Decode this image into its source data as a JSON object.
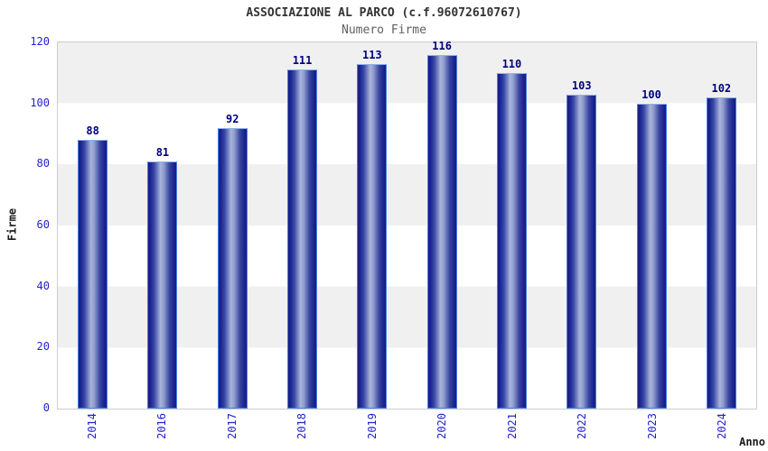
{
  "header": {
    "title": "ASSOCIAZIONE AL PARCO (c.f.96072610767)",
    "subtitle": "Numero Firme"
  },
  "chart_data": {
    "type": "bar",
    "title": "ASSOCIAZIONE AL PARCO (c.f.96072610767)",
    "subtitle": "Numero Firme",
    "categories": [
      "2014",
      "2016",
      "2017",
      "2018",
      "2019",
      "2020",
      "2021",
      "2022",
      "2023",
      "2024"
    ],
    "values": [
      88,
      81,
      92,
      111,
      113,
      116,
      110,
      103,
      100,
      102
    ],
    "xlabel": "Anno",
    "ylabel": "Firme",
    "ylim": [
      0,
      120
    ],
    "yticks": [
      0,
      20,
      40,
      60,
      80,
      100,
      120
    ],
    "grid": "alternating-horizontal-bands",
    "legend": "none"
  },
  "colors": {
    "tick_label": "#2222cc",
    "value_label": "#00007e",
    "bar_dark": "#161c82",
    "bar_highlight": "#a9b3da",
    "bar_border": "#4e7fe0",
    "band_gray": "#f0f0f0",
    "band_white": "#ffffff",
    "plot_border": "#cccccc",
    "title_color": "#333333",
    "subtitle_color": "#606060"
  }
}
